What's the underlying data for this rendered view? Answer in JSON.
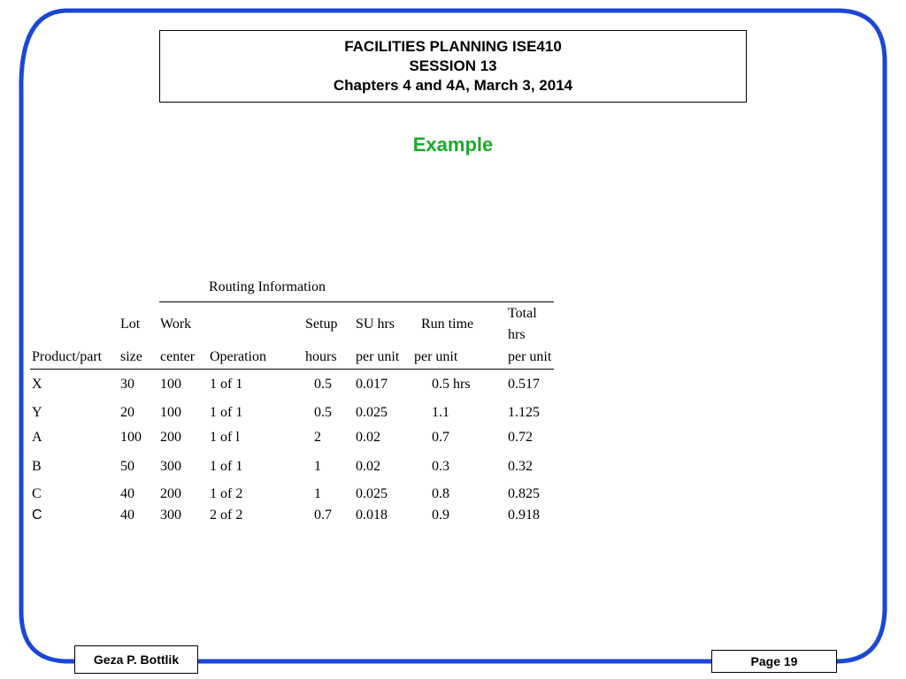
{
  "header": {
    "line1": "FACILITIES PLANNING ISE410",
    "line2": "SESSION 13",
    "line3": "Chapters 4 and 4A, March 3, 2014"
  },
  "subtitle": "Example",
  "table": {
    "group_label": "Routing Information",
    "headers": {
      "product": [
        "Product/part"
      ],
      "lot": [
        "Lot",
        "size"
      ],
      "work": [
        "Work",
        "center"
      ],
      "operation": [
        "Operation"
      ],
      "setup": [
        "Setup",
        "hours"
      ],
      "su": [
        "SU hrs",
        "per unit"
      ],
      "run": [
        "Run time",
        "per unit"
      ],
      "total": [
        "Total",
        "hrs",
        "per unit"
      ]
    },
    "rows": [
      {
        "product": "X",
        "lot": "30",
        "work": "100",
        "operation": "1 of 1",
        "setup": "0.5",
        "su": "0.017",
        "run": "0.5 hrs",
        "total": "0.517"
      },
      {
        "product": "Y",
        "lot": "20",
        "work": "100",
        "operation": "1 of 1",
        "setup": "0.5",
        "su": "0.025",
        "run": "1.1",
        "total": "1.125"
      },
      {
        "product": "A",
        "lot": "100",
        "work": "200",
        "operation": "1 of l",
        "setup": "2",
        "su": "0.02",
        "run": "0.7",
        "total": "0.72"
      },
      {
        "product": "B",
        "lot": "50",
        "work": "300",
        "operation": "1 of 1",
        "setup": "1",
        "su": "0.02",
        "run": "0.3",
        "total": "0.32"
      },
      {
        "product": "C",
        "lot": "40",
        "work": "200",
        "operation": "1 of 2",
        "setup": "1",
        "su": "0.025",
        "run": "0.8",
        "total": "0.825"
      },
      {
        "product": "C",
        "lot": "40",
        "work": "300",
        "operation": "2 of 2",
        "setup": "0.7",
        "su": "0.018",
        "run": "0.9",
        "total": "0.918"
      }
    ]
  },
  "footer": {
    "author": "Geza P. Bottlik",
    "page": "Page 19"
  },
  "colors": {
    "frame": "#1a47d8",
    "subtitle": "#1aab2a"
  }
}
